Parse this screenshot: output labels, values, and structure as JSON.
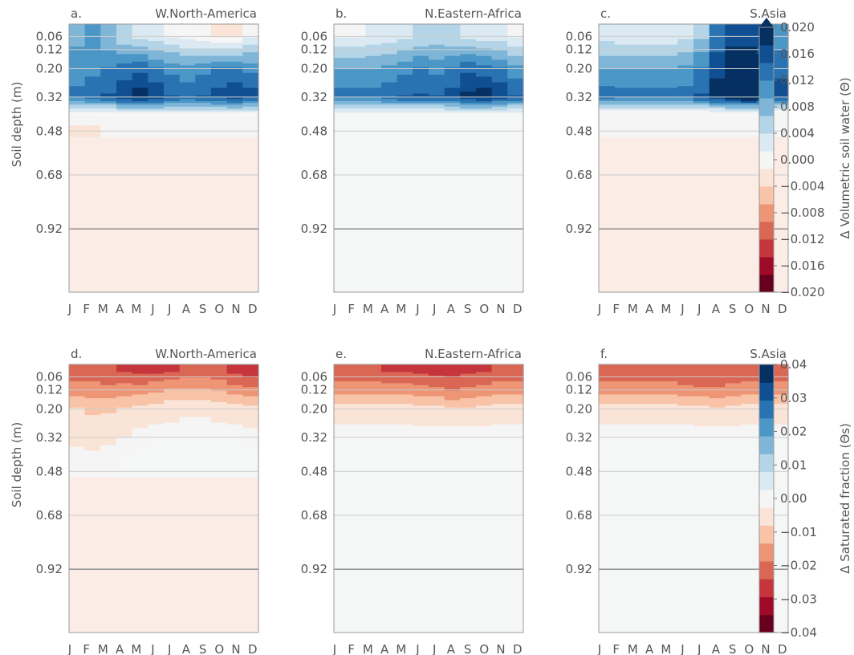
{
  "chart_data": {
    "type": "contour",
    "months": [
      "J",
      "F",
      "M",
      "A",
      "M",
      "J",
      "J",
      "A",
      "S",
      "O",
      "N",
      "D"
    ],
    "depth_ticks": [
      "0.06",
      "0.12",
      "0.20",
      "0.32",
      "0.48",
      "0.68",
      "0.92"
    ],
    "ylabel": "Soil depth (m)",
    "rows": [
      {
        "variable": "Δ Volumetric soil water (Θ)",
        "colorbar_ticks": [
          "0.020",
          "0.016",
          "0.012",
          "0.008",
          "0.004",
          "0.000",
          "−0.004",
          "−0.008",
          "−0.012",
          "−0.016",
          "−0.020"
        ],
        "vmin": -0.02,
        "vmax": 0.02,
        "panels": [
          {
            "letter": "a.",
            "region": "W.North-America",
            "depth_m": [
              0.06,
              0.2,
              0.32,
              0.4,
              0.48
            ],
            "values": [
              [
                0.009,
                0.01,
                0.007,
                0.004,
                0.003,
                0.002,
                0.001,
                0.0,
                -0.001,
                -0.002,
                -0.002,
                0.001
              ],
              [
                0.01,
                0.011,
                0.012,
                0.013,
                0.014,
                0.012,
                0.011,
                0.01,
                0.011,
                0.012,
                0.012,
                0.011
              ],
              [
                0.013,
                0.014,
                0.015,
                0.017,
                0.019,
                0.017,
                0.015,
                0.014,
                0.015,
                0.016,
                0.017,
                0.016
              ],
              [
                0.0,
                0.0,
                0.0,
                0.001,
                0.001,
                0.001,
                0.001,
                0.001,
                0.001,
                0.001,
                0.001,
                0.0
              ],
              [
                -0.002,
                -0.002,
                -0.001,
                -0.001,
                -0.001,
                -0.001,
                -0.001,
                -0.001,
                -0.001,
                -0.001,
                -0.001,
                -0.001
              ]
            ]
          },
          {
            "letter": "b.",
            "region": "N.Eastern-Africa",
            "depth_m": [
              0.06,
              0.2,
              0.32,
              0.4
            ],
            "values": [
              [
                0.001,
                0.001,
                0.002,
                0.002,
                0.003,
                0.004,
                0.005,
                0.004,
                0.003,
                0.002,
                0.002,
                0.001
              ],
              [
                0.009,
                0.009,
                0.009,
                0.01,
                0.011,
                0.012,
                0.011,
                0.012,
                0.014,
                0.013,
                0.012,
                0.01
              ],
              [
                0.013,
                0.013,
                0.013,
                0.014,
                0.015,
                0.015,
                0.015,
                0.016,
                0.018,
                0.019,
                0.017,
                0.015
              ],
              [
                0.0,
                0.0,
                0.0,
                0.0,
                0.0,
                0.0,
                0.0,
                0.0,
                0.0,
                0.0,
                0.0,
                0.0
              ]
            ]
          },
          {
            "letter": "c.",
            "region": "S.Asia",
            "depth_m": [
              0.06,
              0.2,
              0.32,
              0.4
            ],
            "values": [
              [
                0.003,
                0.002,
                0.002,
                0.002,
                0.002,
                0.003,
                0.006,
                0.012,
                0.016,
                0.016,
                0.015,
                0.01
              ],
              [
                0.009,
                0.009,
                0.009,
                0.009,
                0.009,
                0.01,
                0.012,
                0.017,
                0.02,
                0.02,
                0.019,
                0.014
              ],
              [
                0.014,
                0.013,
                0.013,
                0.013,
                0.013,
                0.013,
                0.015,
                0.018,
                0.021,
                0.022,
                0.02,
                0.016
              ],
              [
                -0.001,
                -0.001,
                -0.001,
                -0.001,
                -0.001,
                -0.001,
                -0.001,
                -0.001,
                -0.001,
                -0.001,
                -0.001,
                -0.001
              ]
            ]
          }
        ]
      },
      {
        "variable": "Δ Saturated fraction (Θs)",
        "colorbar_ticks": [
          "0.04",
          "0.03",
          "0.02",
          "0.01",
          "0.00",
          "−0.01",
          "−0.02",
          "−0.03",
          "−0.04"
        ],
        "vmin": -0.04,
        "vmax": 0.04,
        "panels": [
          {
            "letter": "d.",
            "region": "W.North-America",
            "depth_m": [
              0.03,
              0.12,
              0.2,
              0.32,
              0.4
            ],
            "values": [
              [
                -0.022,
                -0.022,
                -0.024,
                -0.025,
                -0.027,
                -0.026,
                -0.025,
                -0.022,
                -0.022,
                -0.024,
                -0.026,
                -0.028
              ],
              [
                -0.017,
                -0.017,
                -0.017,
                -0.016,
                -0.016,
                -0.015,
                -0.013,
                -0.013,
                -0.013,
                -0.014,
                -0.016,
                -0.018
              ],
              [
                -0.008,
                -0.009,
                -0.009,
                -0.008,
                -0.007,
                -0.006,
                -0.005,
                -0.004,
                -0.004,
                -0.005,
                -0.006,
                -0.007
              ],
              [
                -0.005,
                -0.005,
                -0.004,
                -0.003,
                -0.001,
                0.0,
                0.0,
                0.0,
                0.0,
                0.0,
                0.0,
                -0.001
              ],
              [
                -0.001,
                -0.002,
                -0.001,
                0.0,
                0.0,
                0.0,
                0.0,
                0.0,
                0.0,
                0.0,
                0.0,
                0.0
              ]
            ]
          },
          {
            "letter": "e.",
            "region": "N.Eastern-Africa",
            "depth_m": [
              0.03,
              0.12,
              0.2,
              0.32
            ],
            "values": [
              [
                -0.024,
                -0.024,
                -0.024,
                -0.025,
                -0.025,
                -0.026,
                -0.027,
                -0.028,
                -0.026,
                -0.025,
                -0.024,
                -0.024
              ],
              [
                -0.016,
                -0.016,
                -0.016,
                -0.016,
                -0.016,
                -0.017,
                -0.018,
                -0.019,
                -0.018,
                -0.017,
                -0.016,
                -0.016
              ],
              [
                -0.006,
                -0.006,
                -0.006,
                -0.006,
                -0.006,
                -0.007,
                -0.007,
                -0.008,
                -0.008,
                -0.007,
                -0.006,
                -0.006
              ],
              [
                0.0,
                0.0,
                0.0,
                0.0,
                0.0,
                0.0,
                0.0,
                0.0,
                0.0,
                0.0,
                0.0,
                0.0
              ]
            ]
          },
          {
            "letter": "f.",
            "region": "S.Asia",
            "depth_m": [
              0.03,
              0.12,
              0.2,
              0.32
            ],
            "values": [
              [
                -0.023,
                -0.023,
                -0.023,
                -0.024,
                -0.024,
                -0.024,
                -0.023,
                -0.023,
                -0.023,
                -0.023,
                -0.023,
                -0.023
              ],
              [
                -0.016,
                -0.016,
                -0.016,
                -0.016,
                -0.016,
                -0.017,
                -0.018,
                -0.018,
                -0.017,
                -0.016,
                -0.016,
                -0.016
              ],
              [
                -0.006,
                -0.006,
                -0.006,
                -0.006,
                -0.006,
                -0.006,
                -0.007,
                -0.008,
                -0.007,
                -0.006,
                -0.006,
                -0.006
              ],
              [
                0.0,
                0.0,
                0.0,
                0.0,
                0.0,
                0.0,
                0.0,
                0.0,
                0.0,
                0.0,
                0.0,
                0.0
              ]
            ]
          }
        ]
      }
    ],
    "colors": {
      "palette": [
        "#67001f",
        "#9e0a28",
        "#c5353b",
        "#da6654",
        "#ed9575",
        "#f8c3a6",
        "#fae4d8",
        "#f5f5f5",
        "#dbe9f2",
        "#b4d5e8",
        "#7fb6d7",
        "#4b97c7",
        "#2a73b2",
        "#0f4f92",
        "#053061"
      ],
      "neutral": "#f5f6f6",
      "faint_warm": "#fbede6"
    }
  }
}
